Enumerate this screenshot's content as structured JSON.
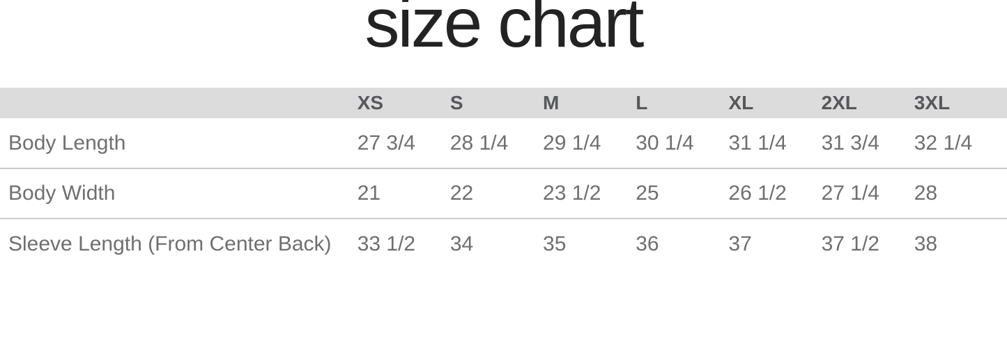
{
  "title": "size chart",
  "colors": {
    "header_bg": "#dcdcdc",
    "header_text": "#57585b",
    "body_text": "#6e6f71",
    "divider": "#cbcbcb",
    "title_text": "#232323"
  },
  "chart_data": {
    "type": "table",
    "title": "size chart",
    "columns": [
      "",
      "XS",
      "S",
      "M",
      "L",
      "XL",
      "2XL",
      "3XL"
    ],
    "rows": [
      [
        "Body Length",
        "27 3/4",
        "28 1/4",
        "29 1/4",
        "30 1/4",
        "31 1/4",
        "31 3/4",
        "32 1/4"
      ],
      [
        "Body Width",
        "21",
        "22",
        "23 1/2",
        "25",
        "26 1/2",
        "27 1/4",
        "28"
      ],
      [
        "Sleeve Length (From Center Back)",
        "33 1/2",
        "34",
        "35",
        "36",
        "37",
        "37 1/2",
        "38"
      ]
    ]
  }
}
